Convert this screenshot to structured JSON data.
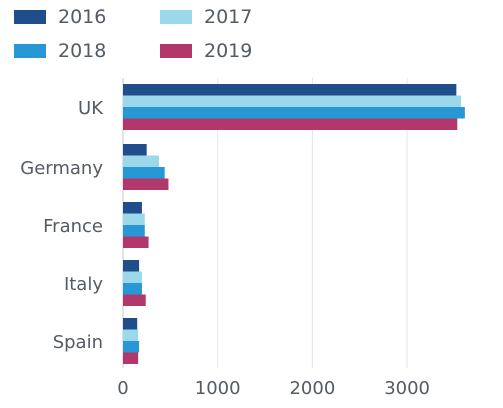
{
  "chart_data": {
    "type": "bar",
    "orientation": "horizontal",
    "categories": [
      "UK",
      "Germany",
      "France",
      "Italy",
      "Spain"
    ],
    "series": [
      {
        "name": "2016",
        "color": "#1f4e8a",
        "values": [
          3520,
          250,
          200,
          170,
          150
        ]
      },
      {
        "name": "2017",
        "color": "#9ad8ea",
        "values": [
          3570,
          380,
          230,
          200,
          160
        ]
      },
      {
        "name": "2018",
        "color": "#2797d6",
        "values": [
          3610,
          440,
          230,
          200,
          170
        ]
      },
      {
        "name": "2019",
        "color": "#b2386b",
        "values": [
          3530,
          480,
          270,
          240,
          160
        ]
      }
    ],
    "xlim": [
      0,
      3800
    ],
    "xticks": [
      0,
      1000,
      2000,
      3000
    ],
    "xtick_labels": [
      "0",
      "1000",
      "2000",
      "3000"
    ],
    "grid": "vertical",
    "legend_position": "top-left",
    "title": "",
    "xlabel": "",
    "ylabel": ""
  }
}
